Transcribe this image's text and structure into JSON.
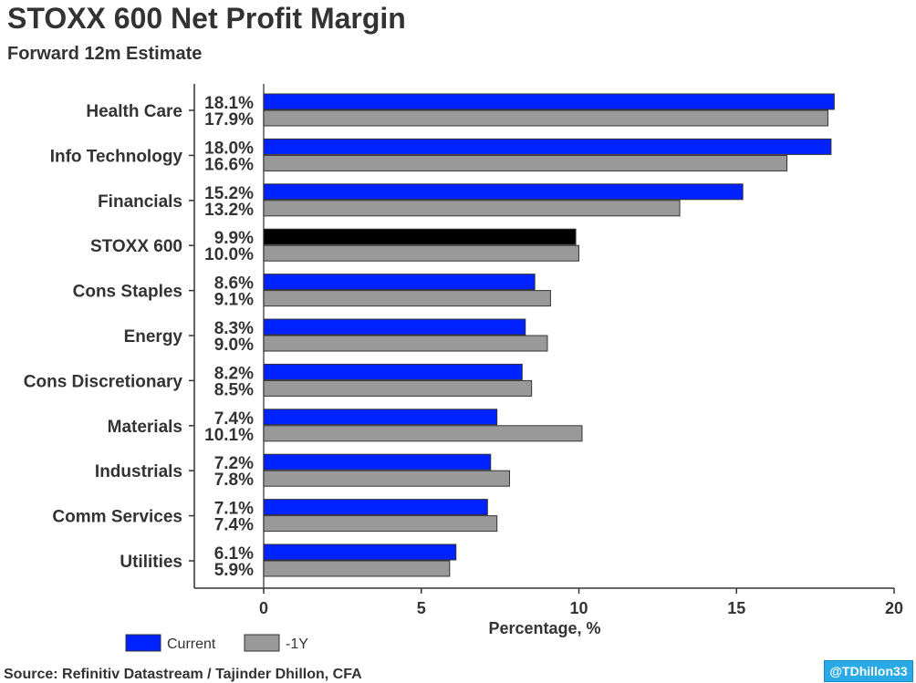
{
  "chart_data": {
    "type": "bar",
    "orientation": "horizontal",
    "title": "STOXX 600 Net Profit Margin",
    "subtitle": "Forward 12m Estimate",
    "xlabel": "Percentage, %",
    "ylabel": "",
    "xlim": [
      -2.2,
      20
    ],
    "xticks": [
      0,
      5,
      10,
      15,
      20
    ],
    "categories": [
      "Health Care",
      "Info Technology",
      "Financials",
      "STOXX 600",
      "Cons Staples",
      "Energy",
      "Cons Discretionary",
      "Materials",
      "Industrials",
      "Comm Services",
      "Utilities"
    ],
    "series": [
      {
        "name": "Current",
        "color": "#0022ff",
        "values": [
          18.1,
          18.0,
          15.2,
          9.9,
          8.6,
          8.3,
          8.2,
          7.4,
          7.2,
          7.1,
          6.1
        ],
        "labels": [
          "18.1%",
          "18.0%",
          "15.2%",
          "9.9%",
          "8.6%",
          "8.3%",
          "8.2%",
          "7.4%",
          "7.2%",
          "7.1%",
          "6.1%"
        ]
      },
      {
        "name": "-1Y",
        "color": "#999999",
        "values": [
          17.9,
          16.6,
          13.2,
          10.0,
          9.1,
          9.0,
          8.5,
          10.1,
          7.8,
          7.4,
          5.9
        ],
        "labels": [
          "17.9%",
          "16.6%",
          "13.2%",
          "10.0%",
          "9.1%",
          "9.0%",
          "8.5%",
          "10.1%",
          "7.8%",
          "7.4%",
          "5.9%"
        ]
      }
    ],
    "highlight": {
      "category": "STOXX 600",
      "color": "#000000"
    },
    "legend": "bottom-left",
    "grid": false
  },
  "source": "Source: Refinitiv Datastream / Tajinder Dhillon, CFA",
  "badge": "@TDhillon33"
}
